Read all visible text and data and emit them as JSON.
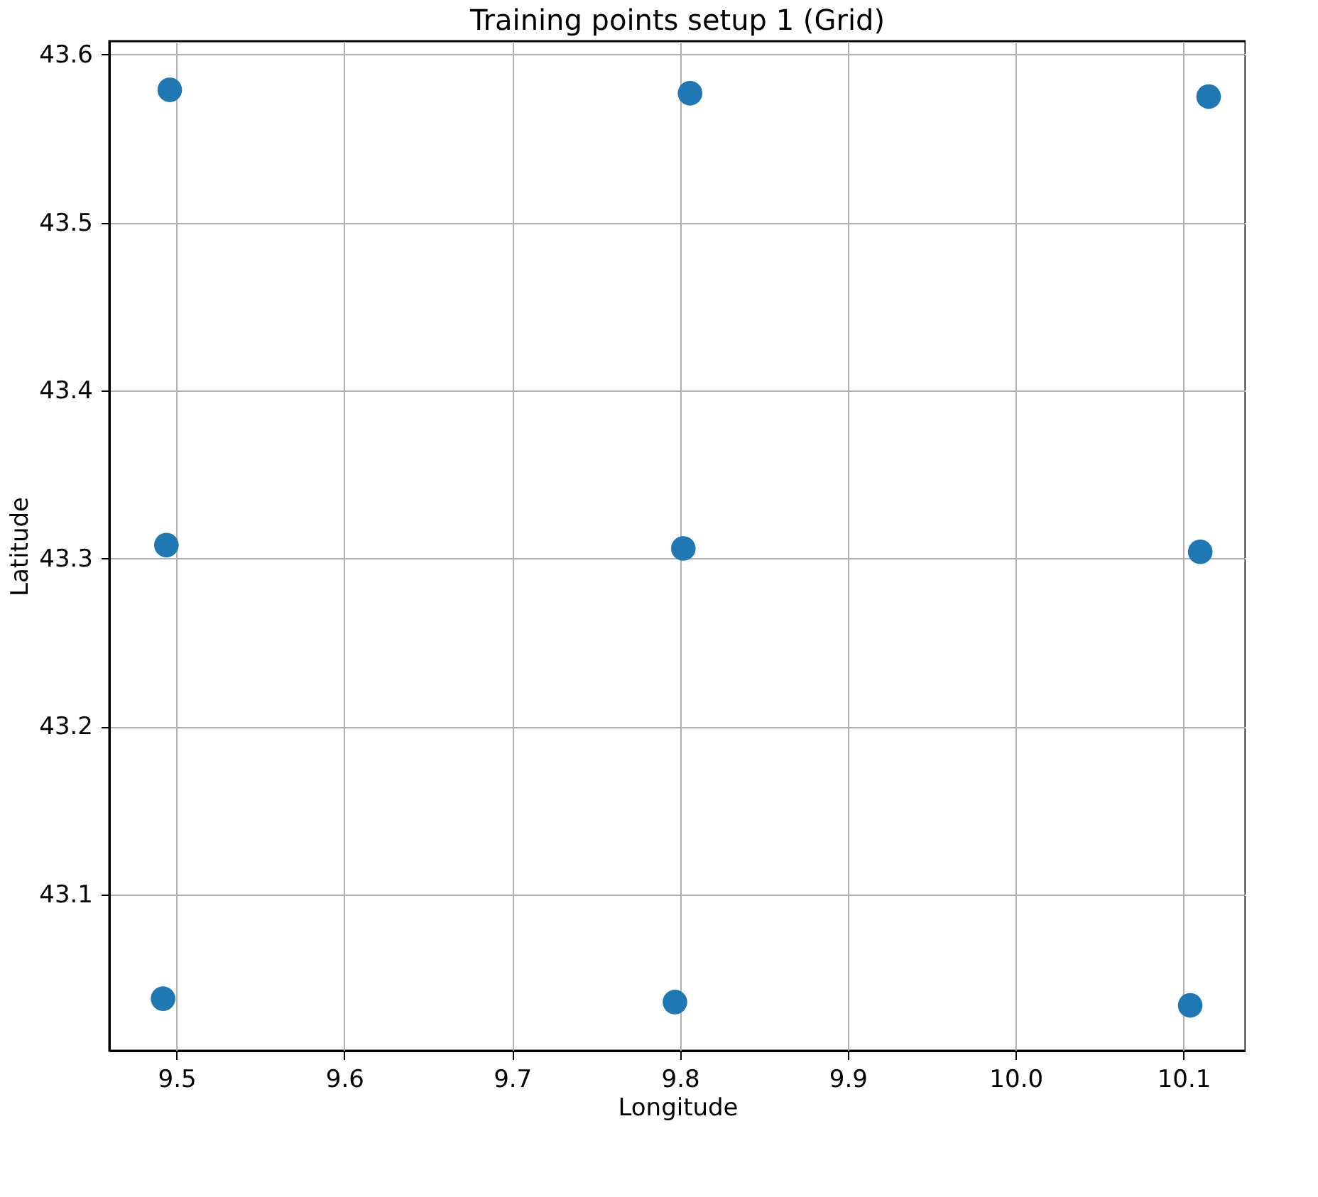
{
  "chart_data": {
    "type": "scatter",
    "title": "Training points setup 1 (Grid)",
    "xlabel": "Longitude",
    "ylabel": "Latitude",
    "x": [
      9.496,
      9.806,
      10.115,
      9.494,
      9.802,
      10.11,
      9.492,
      9.797,
      10.104
    ],
    "series": [
      {
        "color": "#1f77b4",
        "values": [
          43.579,
          43.577,
          43.575,
          43.308,
          43.306,
          43.304,
          43.038,
          43.036,
          43.034
        ]
      }
    ],
    "xlim": [
      9.46,
      10.137
    ],
    "ylim": [
      43.007,
      43.608
    ],
    "xticks": [
      {
        "value": 9.5,
        "label": "9.5"
      },
      {
        "value": 9.6,
        "label": "9.6"
      },
      {
        "value": 9.7,
        "label": "9.7"
      },
      {
        "value": 9.8,
        "label": "9.8"
      },
      {
        "value": 9.9,
        "label": "9.9"
      },
      {
        "value": 10.0,
        "label": "10.0"
      },
      {
        "value": 10.1,
        "label": "10.1"
      }
    ],
    "yticks": [
      {
        "value": 43.1,
        "label": "43.1"
      },
      {
        "value": 43.2,
        "label": "43.2"
      },
      {
        "value": 43.3,
        "label": "43.3"
      },
      {
        "value": 43.4,
        "label": "43.4"
      },
      {
        "value": 43.5,
        "label": "43.5"
      },
      {
        "value": 43.6,
        "label": "43.6"
      }
    ],
    "grid": true,
    "marker": "circle"
  }
}
